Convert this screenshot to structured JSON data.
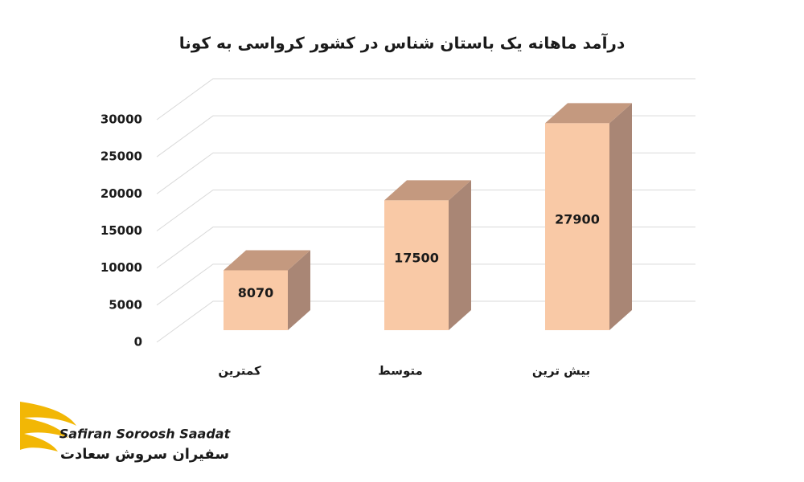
{
  "chart_data": {
    "type": "bar3d",
    "title": "درآمد ماهانه یک باستان شناس در کشور کرواسی به کونا",
    "categories": [
      "کمترین",
      "متوسط",
      "بیش ترین"
    ],
    "values": [
      8070,
      17500,
      27900
    ],
    "colors": {
      "front": "#f9c9a6",
      "top": "#c4997f",
      "side": "#a98675"
    },
    "ylim": [
      0,
      30000
    ],
    "yticks": [
      0,
      5000,
      10000,
      15000,
      20000,
      25000,
      30000
    ],
    "grid": true
  },
  "logo": {
    "latin": "Safiran Soroosh Saadat",
    "persian": "سفیران سروش سعادت"
  }
}
